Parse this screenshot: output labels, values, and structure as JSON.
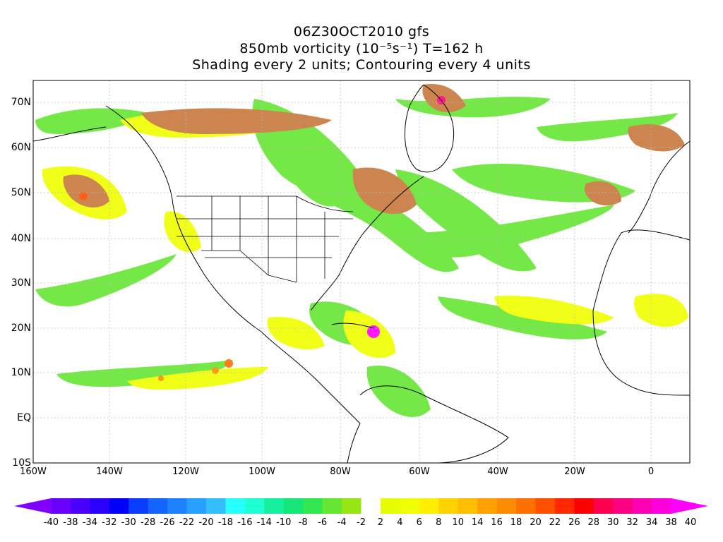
{
  "title": {
    "line1": "06Z30OCT2010 gfs",
    "line2": "850mb vorticity (10⁻⁵s⁻¹) T=162 h",
    "line3": "Shading every 2 units; Contouring every 4 units"
  },
  "lat_labels": [
    "70N",
    "60N",
    "50N",
    "40N",
    "30N",
    "20N",
    "10N",
    "EQ",
    "10S"
  ],
  "lon_labels": [
    "160W",
    "140W",
    "120W",
    "100W",
    "80W",
    "60W",
    "40W",
    "20W",
    "0"
  ],
  "colorbar": {
    "labels": [
      "-40",
      "-38",
      "-34",
      "-32",
      "-30",
      "-28",
      "-26",
      "-22",
      "-20",
      "-18",
      "-16",
      "-14",
      "-10",
      "-8",
      "-6",
      "-4",
      "-2",
      "2",
      "4",
      "6",
      "8",
      "10",
      "14",
      "16",
      "18",
      "20",
      "22",
      "26",
      "28",
      "30",
      "32",
      "34",
      "38",
      "40"
    ],
    "colors": [
      "#7f00ff",
      "#6a00ff",
      "#4b00ff",
      "#2a00ff",
      "#0000ff",
      "#0a3cff",
      "#1464ff",
      "#1e82ff",
      "#28a0ff",
      "#32beff",
      "#28ffff",
      "#1effd2",
      "#14f0a0",
      "#14e678",
      "#32e650",
      "#64e632",
      "#96e614",
      "#ffffff",
      "#e6ff00",
      "#f0ff00",
      "#ffee00",
      "#ffd200",
      "#ffbe00",
      "#ffa000",
      "#ff8c00",
      "#ff7000",
      "#ff5000",
      "#ff2800",
      "#ff0000",
      "#ff0050",
      "#ff0082",
      "#ff00b4",
      "#ff00dc",
      "#ff00ff"
    ]
  },
  "map_colors": {
    "green": "#64e632",
    "dark_green": "#14c850",
    "yellow": "#f0ff00",
    "orange": "#ffa000",
    "brown": "#c8783c",
    "magenta": "#ff00ff",
    "grid": "#bbbbbb",
    "coast": "#000000"
  }
}
